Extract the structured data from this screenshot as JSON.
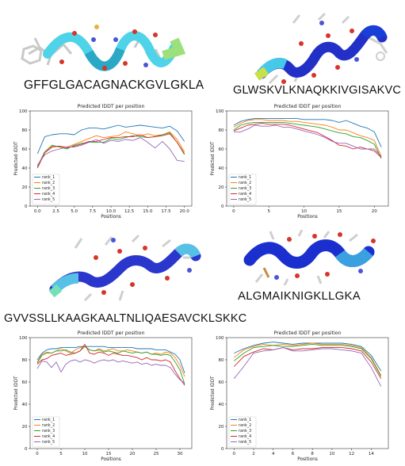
{
  "panels": [
    {
      "sequence": "GFFGLGACAGNACKGVLGKLA",
      "helix_colors": [
        "#4fd3e8",
        "#38c9e6",
        "#9be07a"
      ]
    },
    {
      "sequence": "GLWSKVLKNAQKKIVGISAKVC",
      "helix_colors": [
        "#2230c8",
        "#1a3fd8",
        "#46c8e8",
        "#c8e04a"
      ]
    },
    {
      "sequence": "GVVSSLLKAAGKAALTNLIQAESAVCKLSKKC",
      "helix_colors": [
        "#2a36cc",
        "#1e4ad6",
        "#57c0e6",
        "#73e0b8"
      ]
    },
    {
      "sequence": "ALGMAIKNIGKLLGKA",
      "helix_colors": [
        "#1b2fcf",
        "#2744d8",
        "#3aa0e0",
        "#c98a3a"
      ]
    }
  ],
  "chart_data": [
    {
      "type": "line",
      "title": "Predicted lDDT per position",
      "xlabel": "Positions",
      "ylabel": "Predicted lDDT",
      "xlim": [
        -1,
        21
      ],
      "ylim": [
        0,
        100
      ],
      "xticks": [
        "0.0",
        "2.5",
        "5.0",
        "7.5",
        "10.0",
        "12.5",
        "15.0",
        "17.5",
        "20.0"
      ],
      "xtick_values": [
        0,
        2.5,
        5,
        7.5,
        10,
        12.5,
        15,
        17.5,
        20
      ],
      "yticks": [
        0,
        20,
        40,
        60,
        80,
        100
      ],
      "legend": "lower-left",
      "x": [
        0,
        1,
        2,
        3,
        4,
        5,
        6,
        7,
        8,
        9,
        10,
        11,
        12,
        13,
        14,
        15,
        16,
        17,
        18,
        19,
        20
      ],
      "series": [
        {
          "name": "rank_1",
          "color": "#1f77b4",
          "values": [
            55,
            73,
            75,
            76,
            76,
            75,
            80,
            82,
            82,
            81,
            83,
            85,
            83,
            84,
            85,
            84,
            83,
            82,
            84,
            79,
            68
          ]
        },
        {
          "name": "rank_2",
          "color": "#ff7f0e",
          "values": [
            42,
            57,
            63,
            63,
            62,
            65,
            68,
            71,
            74,
            72,
            73,
            74,
            78,
            76,
            74,
            76,
            74,
            75,
            78,
            70,
            57
          ]
        },
        {
          "name": "rank_3",
          "color": "#2ca02c",
          "values": [
            41,
            57,
            64,
            62,
            60,
            64,
            66,
            67,
            67,
            67,
            71,
            70,
            72,
            74,
            73,
            72,
            73,
            75,
            77,
            67,
            54
          ]
        },
        {
          "name": "rank_4",
          "color": "#d62728",
          "values": [
            40,
            56,
            62,
            63,
            61,
            63,
            65,
            68,
            68,
            70,
            72,
            72,
            73,
            73,
            75,
            72,
            73,
            74,
            76,
            67,
            55
          ]
        },
        {
          "name": "rank_5",
          "color": "#9467bd",
          "values": [
            43,
            54,
            58,
            60,
            62,
            62,
            64,
            67,
            70,
            66,
            69,
            68,
            70,
            69,
            72,
            67,
            61,
            68,
            60,
            48,
            47
          ]
        }
      ]
    },
    {
      "type": "line",
      "title": "Predicted lDDT per position",
      "xlabel": "Positions",
      "ylabel": "Predicted lDDT",
      "xlim": [
        -1,
        22
      ],
      "ylim": [
        0,
        100
      ],
      "xticks": [
        "0",
        "5",
        "10",
        "15",
        "20"
      ],
      "xtick_values": [
        0,
        5,
        10,
        15,
        20
      ],
      "yticks": [
        0,
        20,
        40,
        60,
        80,
        100
      ],
      "legend": "lower-left",
      "x": [
        0,
        1,
        2,
        3,
        4,
        5,
        6,
        7,
        8,
        9,
        10,
        11,
        12,
        13,
        14,
        15,
        16,
        17,
        18,
        19,
        20,
        21
      ],
      "series": [
        {
          "name": "rank_1",
          "color": "#1f77b4",
          "values": [
            85,
            89,
            91,
            92,
            92,
            92,
            92,
            92,
            92,
            92,
            91,
            91,
            91,
            91,
            90,
            88,
            90,
            87,
            84,
            82,
            78,
            62
          ]
        },
        {
          "name": "rank_2",
          "color": "#ff7f0e",
          "values": [
            83,
            87,
            90,
            91,
            91,
            90,
            90,
            90,
            89,
            89,
            88,
            87,
            86,
            85,
            83,
            80,
            80,
            77,
            74,
            72,
            69,
            52
          ]
        },
        {
          "name": "rank_3",
          "color": "#2ca02c",
          "values": [
            80,
            85,
            87,
            88,
            88,
            88,
            88,
            88,
            87,
            86,
            85,
            84,
            83,
            81,
            79,
            77,
            76,
            73,
            72,
            69,
            65,
            50
          ]
        },
        {
          "name": "rank_4",
          "color": "#d62728",
          "values": [
            79,
            82,
            85,
            86,
            87,
            86,
            86,
            86,
            85,
            83,
            81,
            79,
            77,
            73,
            69,
            64,
            63,
            60,
            62,
            60,
            58,
            51
          ]
        },
        {
          "name": "rank_5",
          "color": "#9467bd",
          "values": [
            78,
            78,
            81,
            85,
            84,
            84,
            85,
            83,
            83,
            81,
            79,
            77,
            75,
            72,
            68,
            66,
            66,
            63,
            60,
            60,
            60,
            52
          ]
        }
      ]
    },
    {
      "type": "line",
      "title": "Predicted lDDT per position",
      "xlabel": "Positions",
      "ylabel": "Predicted lDDT",
      "xlim": [
        -1.5,
        32.5
      ],
      "ylim": [
        0,
        100
      ],
      "xticks": [
        "0",
        "5",
        "10",
        "15",
        "20",
        "25",
        "30"
      ],
      "xtick_values": [
        0,
        5,
        10,
        15,
        20,
        25,
        30
      ],
      "yticks": [
        0,
        20,
        40,
        60,
        80,
        100
      ],
      "legend": "lower-left",
      "x": [
        0,
        1,
        2,
        3,
        4,
        5,
        6,
        7,
        8,
        9,
        10,
        11,
        12,
        13,
        14,
        15,
        16,
        17,
        18,
        19,
        20,
        21,
        22,
        23,
        24,
        25,
        26,
        27,
        28,
        29,
        30,
        31
      ],
      "series": [
        {
          "name": "rank_1",
          "color": "#1f77b4",
          "values": [
            80,
            86,
            89,
            90,
            90,
            91,
            91,
            91,
            91,
            92,
            92,
            92,
            92,
            92,
            92,
            91,
            91,
            91,
            91,
            91,
            91,
            90,
            90,
            90,
            90,
            89,
            89,
            89,
            87,
            85,
            80,
            68
          ]
        },
        {
          "name": "rank_2",
          "color": "#ff7f0e",
          "values": [
            78,
            85,
            87,
            86,
            88,
            90,
            88,
            86,
            89,
            91,
            92,
            89,
            88,
            90,
            88,
            89,
            90,
            88,
            88,
            89,
            88,
            87,
            86,
            87,
            85,
            86,
            85,
            87,
            86,
            82,
            75,
            65
          ]
        },
        {
          "name": "rank_3",
          "color": "#2ca02c",
          "values": [
            77,
            84,
            86,
            86,
            88,
            88,
            89,
            87,
            86,
            88,
            92,
            89,
            88,
            89,
            87,
            88,
            87,
            86,
            88,
            87,
            86,
            87,
            86,
            87,
            85,
            85,
            84,
            85,
            84,
            78,
            71,
            58
          ]
        },
        {
          "name": "rank_4",
          "color": "#d62728",
          "values": [
            76,
            80,
            81,
            84,
            85,
            86,
            84,
            85,
            86,
            88,
            94,
            86,
            85,
            87,
            86,
            84,
            86,
            85,
            84,
            84,
            83,
            82,
            80,
            82,
            80,
            80,
            79,
            80,
            78,
            70,
            63,
            57
          ]
        },
        {
          "name": "rank_5",
          "color": "#9467bd",
          "values": [
            72,
            79,
            78,
            73,
            78,
            69,
            76,
            79,
            80,
            78,
            80,
            79,
            77,
            79,
            80,
            79,
            80,
            78,
            79,
            78,
            77,
            78,
            76,
            77,
            75,
            76,
            75,
            75,
            73,
            67,
            62,
            59
          ]
        }
      ]
    },
    {
      "type": "line",
      "title": "Predicted lDDT per position",
      "xlabel": "Positions",
      "ylabel": "Predicted lDDT",
      "xlim": [
        -0.75,
        15.75
      ],
      "ylim": [
        0,
        100
      ],
      "xticks": [
        "0",
        "2",
        "4",
        "6",
        "8",
        "10",
        "12",
        "14"
      ],
      "xtick_values": [
        0,
        2,
        4,
        6,
        8,
        10,
        12,
        14
      ],
      "yticks": [
        0,
        20,
        40,
        60,
        80,
        100
      ],
      "legend": "lower-left",
      "x": [
        0,
        1,
        2,
        3,
        4,
        5,
        6,
        7,
        8,
        9,
        10,
        11,
        12,
        13,
        14,
        15
      ],
      "series": [
        {
          "name": "rank_1",
          "color": "#1f77b4",
          "values": [
            86,
            90,
            93,
            95,
            96,
            95,
            94,
            95,
            95,
            95,
            95,
            95,
            94,
            92,
            84,
            70
          ]
        },
        {
          "name": "rank_2",
          "color": "#ff7f0e",
          "values": [
            82,
            89,
            92,
            94,
            93,
            94,
            93,
            94,
            95,
            94,
            94,
            94,
            93,
            91,
            82,
            66
          ]
        },
        {
          "name": "rank_3",
          "color": "#2ca02c",
          "values": [
            79,
            86,
            91,
            92,
            93,
            92,
            92,
            93,
            94,
            93,
            93,
            93,
            92,
            90,
            81,
            65
          ]
        },
        {
          "name": "rank_4",
          "color": "#d62728",
          "values": [
            74,
            83,
            87,
            90,
            89,
            91,
            89,
            90,
            90,
            91,
            91,
            91,
            90,
            88,
            78,
            63
          ]
        },
        {
          "name": "rank_5",
          "color": "#9467bd",
          "values": [
            63,
            74,
            86,
            88,
            89,
            91,
            88,
            88,
            89,
            90,
            90,
            89,
            88,
            86,
            73,
            56
          ]
        }
      ]
    }
  ]
}
